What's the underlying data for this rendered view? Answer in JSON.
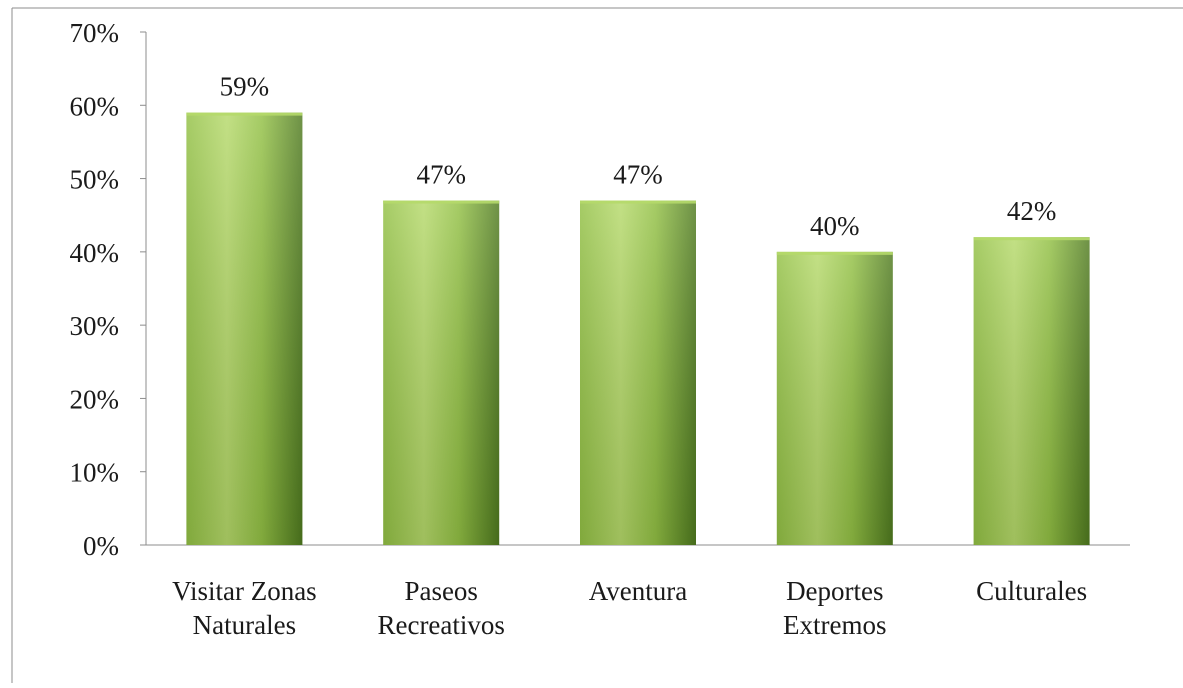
{
  "chart_data": {
    "type": "bar",
    "categories": [
      [
        "Visitar Zonas",
        "Naturales"
      ],
      [
        "Paseos",
        "Recreativos"
      ],
      [
        "Aventura"
      ],
      [
        "Deportes",
        "Extremos"
      ],
      [
        "Culturales"
      ]
    ],
    "values": [
      59,
      47,
      47,
      40,
      42
    ],
    "data_labels": [
      "59%",
      "47%",
      "47%",
      "40%",
      "42%"
    ],
    "y_ticks": [
      "0%",
      "10%",
      "20%",
      "30%",
      "40%",
      "50%",
      "60%",
      "70%"
    ],
    "ylim": [
      0,
      70
    ],
    "y_unit": "%",
    "grid": false,
    "legend": "none",
    "colors": {
      "bar_light": "#b5d96a",
      "bar_mid": "#92c044",
      "bar_dark": "#4f7a1f",
      "axis": "#8c8c8c",
      "frame": "#8c8c8c"
    }
  }
}
